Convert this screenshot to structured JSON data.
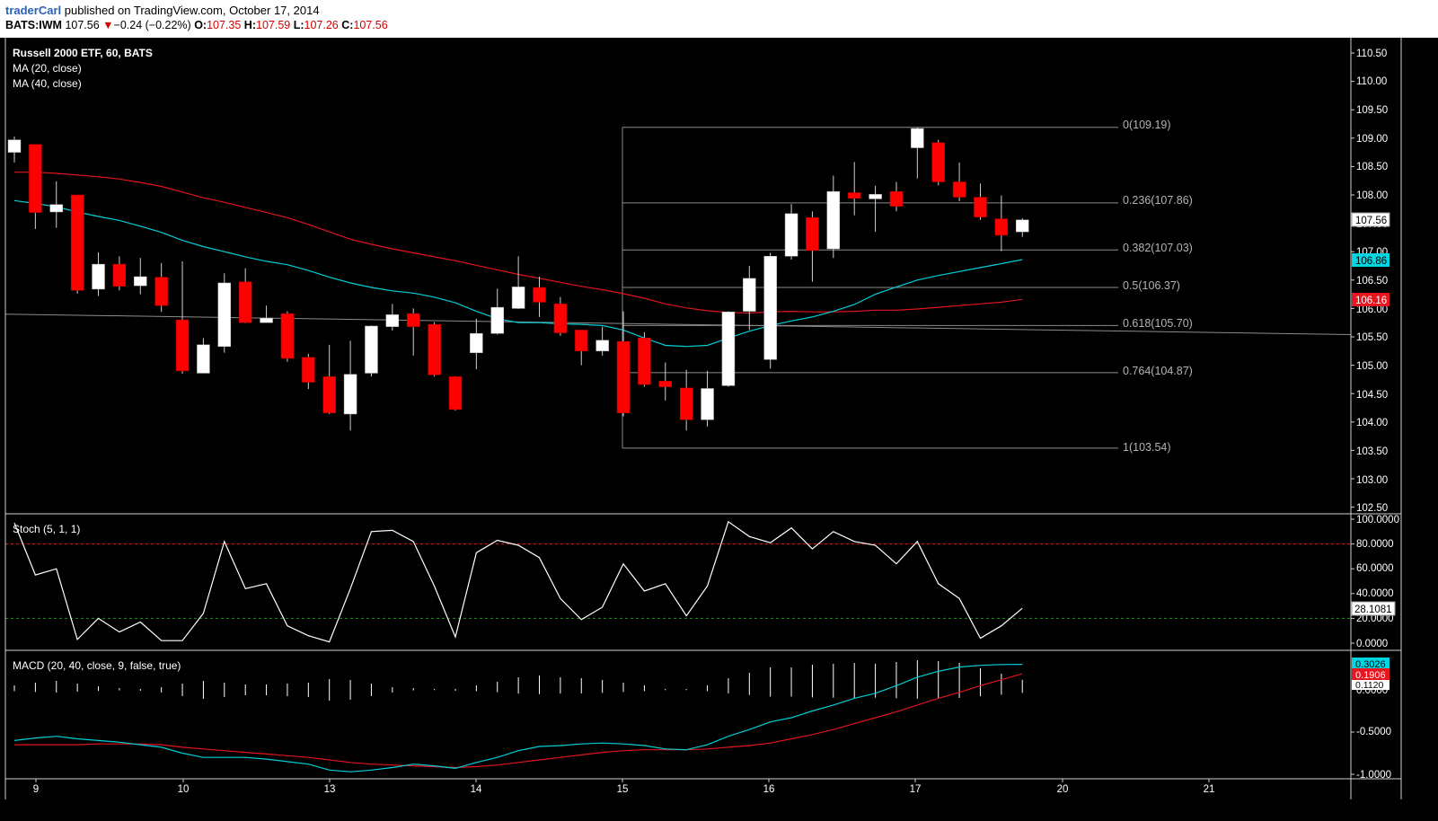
{
  "header": {
    "author": "traderCarl",
    "published_text": "published on TradingView.com, October 17, 2014",
    "symbol": "BATS:IWM",
    "last": "107.56",
    "change_arrow": "▼",
    "change": "−0.24 (−0.22%)",
    "o_label": "O:",
    "o_value": "107.35",
    "h_label": "H:",
    "h_value": "107.59",
    "l_label": "L:",
    "l_value": "107.26",
    "c_label": "C:",
    "c_value": "107.56"
  },
  "main_pane": {
    "title": "Russell 2000 ETF, 60, BATS",
    "legend": [
      "MA (20, close)",
      "MA (40, close)"
    ],
    "price_ticks": [
      "110.50",
      "110.00",
      "109.50",
      "109.00",
      "108.50",
      "108.00",
      "107.50",
      "107.00",
      "106.50",
      "106.00",
      "105.50",
      "105.00",
      "104.50",
      "104.00",
      "103.50",
      "103.00",
      "102.50"
    ],
    "last_price_label": "107.56",
    "ma20_label": "106.86",
    "ma40_label": "106.16"
  },
  "fib_labels": [
    "0(109.19)",
    "0.236(107.86)",
    "0.382(107.03)",
    "0.5(106.37)",
    "0.618(105.70)",
    "0.764(104.87)",
    "1(103.54)"
  ],
  "stoch_pane": {
    "title": "Stoch (5, 1, 1)",
    "ticks": [
      "100.0000",
      "80.0000",
      "60.0000",
      "40.0000",
      "20.0000",
      "0.0000"
    ],
    "last_label": "28.1081"
  },
  "macd_pane": {
    "title": "MACD (20, 40, close, 9, false, true)",
    "ticks": [
      "-0.5000",
      "-1.0000"
    ],
    "partial_ticks": [
      "0.0000",
      "0.1120"
    ],
    "macd_label": "0.3026",
    "signal_label": "0.1906"
  },
  "x_axis": {
    "labels": [
      "9",
      "10",
      "13",
      "14",
      "15",
      "16",
      "17",
      "20",
      "21"
    ]
  },
  "colors": {
    "background": "#000000",
    "up_candle": "#ffffff",
    "down_candle": "#ff0000",
    "ma20": "#00cfd8",
    "ma40": "#e0141e",
    "macd_line": "#00cfd8",
    "signal_line": "#e0141e",
    "stoch_line": "#ffffff",
    "fib_line": "#8c8c8c",
    "stoch_overbought": "#cc2222",
    "stoch_oversold": "#2a8a2a"
  },
  "chart_data": {
    "type": "candlestick",
    "symbol": "BATS:IWM",
    "interval": "60",
    "candles": [
      {
        "o": 108.75,
        "h": 109.03,
        "l": 108.57,
        "c": 108.97
      },
      {
        "o": 108.89,
        "h": 108.89,
        "l": 107.4,
        "c": 107.69
      },
      {
        "o": 107.7,
        "h": 108.24,
        "l": 107.42,
        "c": 107.83
      },
      {
        "o": 108.0,
        "h": 108.0,
        "l": 106.26,
        "c": 106.32
      },
      {
        "o": 106.34,
        "h": 106.99,
        "l": 106.22,
        "c": 106.78
      },
      {
        "o": 106.78,
        "h": 106.92,
        "l": 106.32,
        "c": 106.39
      },
      {
        "o": 106.4,
        "h": 106.89,
        "l": 106.25,
        "c": 106.56
      },
      {
        "o": 106.55,
        "h": 106.8,
        "l": 105.94,
        "c": 106.05
      },
      {
        "o": 105.8,
        "h": 106.83,
        "l": 104.85,
        "c": 104.9
      },
      {
        "o": 104.86,
        "h": 105.48,
        "l": 104.86,
        "c": 105.36
      },
      {
        "o": 105.33,
        "h": 106.62,
        "l": 105.22,
        "c": 106.45
      },
      {
        "o": 106.47,
        "h": 106.71,
        "l": 105.74,
        "c": 105.75
      },
      {
        "o": 105.75,
        "h": 106.05,
        "l": 105.75,
        "c": 105.83
      },
      {
        "o": 105.91,
        "h": 105.95,
        "l": 105.06,
        "c": 105.12
      },
      {
        "o": 105.14,
        "h": 105.2,
        "l": 104.58,
        "c": 104.7
      },
      {
        "o": 104.8,
        "h": 105.36,
        "l": 104.14,
        "c": 104.16
      },
      {
        "o": 104.14,
        "h": 105.43,
        "l": 103.85,
        "c": 104.84
      },
      {
        "o": 104.86,
        "h": 105.7,
        "l": 104.8,
        "c": 105.69
      },
      {
        "o": 105.68,
        "h": 106.08,
        "l": 105.61,
        "c": 105.89
      },
      {
        "o": 105.91,
        "h": 106.0,
        "l": 105.17,
        "c": 105.68
      },
      {
        "o": 105.72,
        "h": 105.76,
        "l": 104.8,
        "c": 104.83
      },
      {
        "o": 104.8,
        "h": 104.8,
        "l": 104.2,
        "c": 104.22
      },
      {
        "o": 105.22,
        "h": 105.82,
        "l": 104.93,
        "c": 105.56
      },
      {
        "o": 105.56,
        "h": 106.35,
        "l": 105.54,
        "c": 106.02
      },
      {
        "o": 106.0,
        "h": 106.92,
        "l": 105.99,
        "c": 106.38
      },
      {
        "o": 106.37,
        "h": 106.56,
        "l": 105.85,
        "c": 106.11
      },
      {
        "o": 106.08,
        "h": 106.2,
        "l": 105.52,
        "c": 105.57
      },
      {
        "o": 105.62,
        "h": 105.62,
        "l": 105.0,
        "c": 105.25
      },
      {
        "o": 105.25,
        "h": 105.68,
        "l": 105.17,
        "c": 105.44
      },
      {
        "o": 105.42,
        "h": 105.95,
        "l": 104.1,
        "c": 104.16
      },
      {
        "o": 105.48,
        "h": 105.58,
        "l": 104.62,
        "c": 104.66
      },
      {
        "o": 104.72,
        "h": 105.05,
        "l": 104.38,
        "c": 104.62
      },
      {
        "o": 104.6,
        "h": 104.92,
        "l": 103.85,
        "c": 104.04
      },
      {
        "o": 104.04,
        "h": 104.9,
        "l": 103.92,
        "c": 104.59
      },
      {
        "o": 104.64,
        "h": 105.95,
        "l": 104.62,
        "c": 105.94
      },
      {
        "o": 105.95,
        "h": 106.75,
        "l": 105.62,
        "c": 106.53
      },
      {
        "o": 105.1,
        "h": 106.98,
        "l": 104.94,
        "c": 106.92
      },
      {
        "o": 106.92,
        "h": 107.84,
        "l": 106.86,
        "c": 107.67
      },
      {
        "o": 107.6,
        "h": 107.71,
        "l": 106.47,
        "c": 107.02
      },
      {
        "o": 107.05,
        "h": 108.34,
        "l": 106.89,
        "c": 108.06
      },
      {
        "o": 108.04,
        "h": 108.58,
        "l": 107.64,
        "c": 107.94
      },
      {
        "o": 107.93,
        "h": 108.16,
        "l": 107.35,
        "c": 108.01
      },
      {
        "o": 108.06,
        "h": 108.23,
        "l": 107.71,
        "c": 107.8
      },
      {
        "o": 108.83,
        "h": 109.19,
        "l": 108.29,
        "c": 109.17
      },
      {
        "o": 108.92,
        "h": 108.97,
        "l": 108.17,
        "c": 108.23
      },
      {
        "o": 108.23,
        "h": 108.57,
        "l": 107.89,
        "c": 107.96
      },
      {
        "o": 107.96,
        "h": 108.2,
        "l": 107.56,
        "c": 107.61
      },
      {
        "o": 107.58,
        "h": 107.99,
        "l": 107.01,
        "c": 107.29
      },
      {
        "o": 107.35,
        "h": 107.59,
        "l": 107.26,
        "c": 107.56
      }
    ],
    "ma20": [
      107.9,
      107.85,
      107.79,
      107.7,
      107.62,
      107.55,
      107.45,
      107.34,
      107.2,
      107.09,
      107.0,
      106.91,
      106.83,
      106.77,
      106.67,
      106.55,
      106.45,
      106.37,
      106.31,
      106.27,
      106.2,
      106.1,
      105.95,
      105.82,
      105.75,
      105.75,
      105.73,
      105.72,
      105.7,
      105.62,
      105.48,
      105.35,
      105.33,
      105.35,
      105.48,
      105.6,
      105.7,
      105.78,
      105.85,
      105.95,
      106.07,
      106.25,
      106.38,
      106.5,
      106.58,
      106.65,
      106.72,
      106.79,
      106.86
    ],
    "ma40": [
      108.4,
      108.4,
      108.38,
      108.35,
      108.32,
      108.28,
      108.22,
      108.15,
      108.05,
      107.95,
      107.87,
      107.78,
      107.69,
      107.6,
      107.48,
      107.35,
      107.22,
      107.13,
      107.05,
      106.98,
      106.91,
      106.84,
      106.76,
      106.68,
      106.6,
      106.53,
      106.46,
      106.39,
      106.33,
      106.26,
      106.18,
      106.08,
      106.01,
      105.96,
      105.93,
      105.92,
      105.94,
      105.95,
      105.94,
      105.94,
      105.95,
      105.97,
      105.97,
      105.99,
      106.02,
      106.05,
      106.08,
      106.11,
      106.16
    ],
    "stoch": [
      97,
      55,
      60,
      3,
      20,
      9,
      17,
      2,
      2,
      24,
      82,
      44,
      48,
      14,
      6,
      1,
      44,
      90,
      91,
      82,
      46,
      5,
      73,
      83,
      79,
      69,
      36,
      19,
      29,
      64,
      42,
      48,
      22,
      46,
      98,
      86,
      81,
      93,
      76,
      90,
      82,
      79,
      64,
      82,
      48,
      36,
      4,
      14,
      28.1
    ],
    "macd": [
      -0.6,
      -0.57,
      -0.55,
      -0.58,
      -0.6,
      -0.62,
      -0.65,
      -0.68,
      -0.75,
      -0.8,
      -0.8,
      -0.8,
      -0.82,
      -0.85,
      -0.88,
      -0.95,
      -0.97,
      -0.95,
      -0.92,
      -0.88,
      -0.9,
      -0.93,
      -0.86,
      -0.8,
      -0.72,
      -0.67,
      -0.66,
      -0.64,
      -0.63,
      -0.64,
      -0.66,
      -0.7,
      -0.71,
      -0.65,
      -0.55,
      -0.47,
      -0.38,
      -0.33,
      -0.25,
      -0.18,
      -0.1,
      -0.04,
      0.05,
      0.15,
      0.22,
      0.27,
      0.29,
      0.3,
      0.3026
    ],
    "signal": [
      -0.65,
      -0.65,
      -0.65,
      -0.65,
      -0.64,
      -0.64,
      -0.64,
      -0.65,
      -0.68,
      -0.7,
      -0.72,
      -0.74,
      -0.76,
      -0.78,
      -0.8,
      -0.83,
      -0.86,
      -0.88,
      -0.89,
      -0.9,
      -0.91,
      -0.92,
      -0.91,
      -0.89,
      -0.86,
      -0.83,
      -0.8,
      -0.77,
      -0.74,
      -0.72,
      -0.71,
      -0.71,
      -0.71,
      -0.7,
      -0.68,
      -0.66,
      -0.63,
      -0.58,
      -0.53,
      -0.47,
      -0.4,
      -0.33,
      -0.26,
      -0.18,
      -0.1,
      -0.03,
      0.05,
      0.12,
      0.1906
    ],
    "fibonacci": [
      {
        "level": "0",
        "price": 109.19
      },
      {
        "level": "0.236",
        "price": 107.86
      },
      {
        "level": "0.382",
        "price": 107.03
      },
      {
        "level": "0.5",
        "price": 106.37
      },
      {
        "level": "0.618",
        "price": 105.7
      },
      {
        "level": "0.764",
        "price": 104.87
      },
      {
        "level": "1",
        "price": 103.54
      }
    ],
    "trendline": [
      105.9,
      105.54
    ],
    "price_range": [
      102.5,
      110.5
    ],
    "stoch_range": [
      0,
      100
    ],
    "stoch_levels": [
      80,
      20
    ],
    "macd_range": [
      -1.0,
      0.35
    ],
    "x_labels": [
      "9",
      "10",
      "13",
      "14",
      "15",
      "16",
      "17",
      "20",
      "21"
    ]
  }
}
